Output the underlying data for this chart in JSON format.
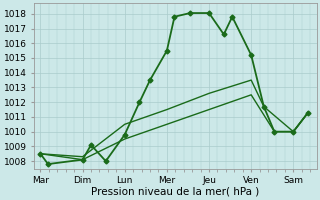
{
  "title": "",
  "xlabel": "Pression niveau de la mer( hPa )",
  "ylabel": "",
  "background_color": "#cce8e8",
  "grid_color": "#aacccc",
  "line_color": "#1a6b1a",
  "x_labels": [
    "Mar",
    "Dim",
    "Lun",
    "Mer",
    "Jeu",
    "Ven",
    "Sam"
  ],
  "x_ticks": [
    0,
    1,
    2,
    3,
    4,
    5,
    6
  ],
  "ylim": [
    1007.5,
    1018.7
  ],
  "yticks": [
    1008,
    1009,
    1010,
    1011,
    1012,
    1013,
    1014,
    1015,
    1016,
    1017,
    1018
  ],
  "figsize": [
    3.2,
    2.0
  ],
  "dpi": 100,
  "series_main": {
    "x": [
      0.0,
      0.18,
      1.0,
      1.2,
      1.55,
      2.0,
      2.35,
      2.6,
      3.0,
      3.18,
      3.55,
      4.0,
      4.35,
      4.55,
      5.0,
      5.3,
      5.55,
      6.0,
      6.35
    ],
    "y": [
      1008.5,
      1007.8,
      1008.1,
      1009.1,
      1008.0,
      1009.8,
      1012.0,
      1013.5,
      1015.5,
      1017.8,
      1018.05,
      1018.05,
      1016.6,
      1017.8,
      1015.2,
      1011.7,
      1010.0,
      1010.0,
      1011.3
    ],
    "linewidth": 1.3,
    "markersize": 2.5
  },
  "series_band_upper": {
    "x": [
      0.0,
      1.0,
      2.0,
      3.0,
      4.0,
      5.0,
      5.3,
      6.0,
      6.35
    ],
    "y": [
      1008.5,
      1008.3,
      1010.5,
      1011.5,
      1012.6,
      1013.5,
      1011.7,
      1010.0,
      1011.3
    ],
    "linewidth": 1.0
  },
  "series_band_lower": {
    "x": [
      0.0,
      1.0,
      2.0,
      3.0,
      4.0,
      5.0,
      5.55,
      6.0,
      6.35
    ],
    "y": [
      1008.5,
      1008.1,
      1009.5,
      1010.5,
      1011.5,
      1012.5,
      1010.0,
      1010.0,
      1011.3
    ],
    "linewidth": 1.0
  }
}
